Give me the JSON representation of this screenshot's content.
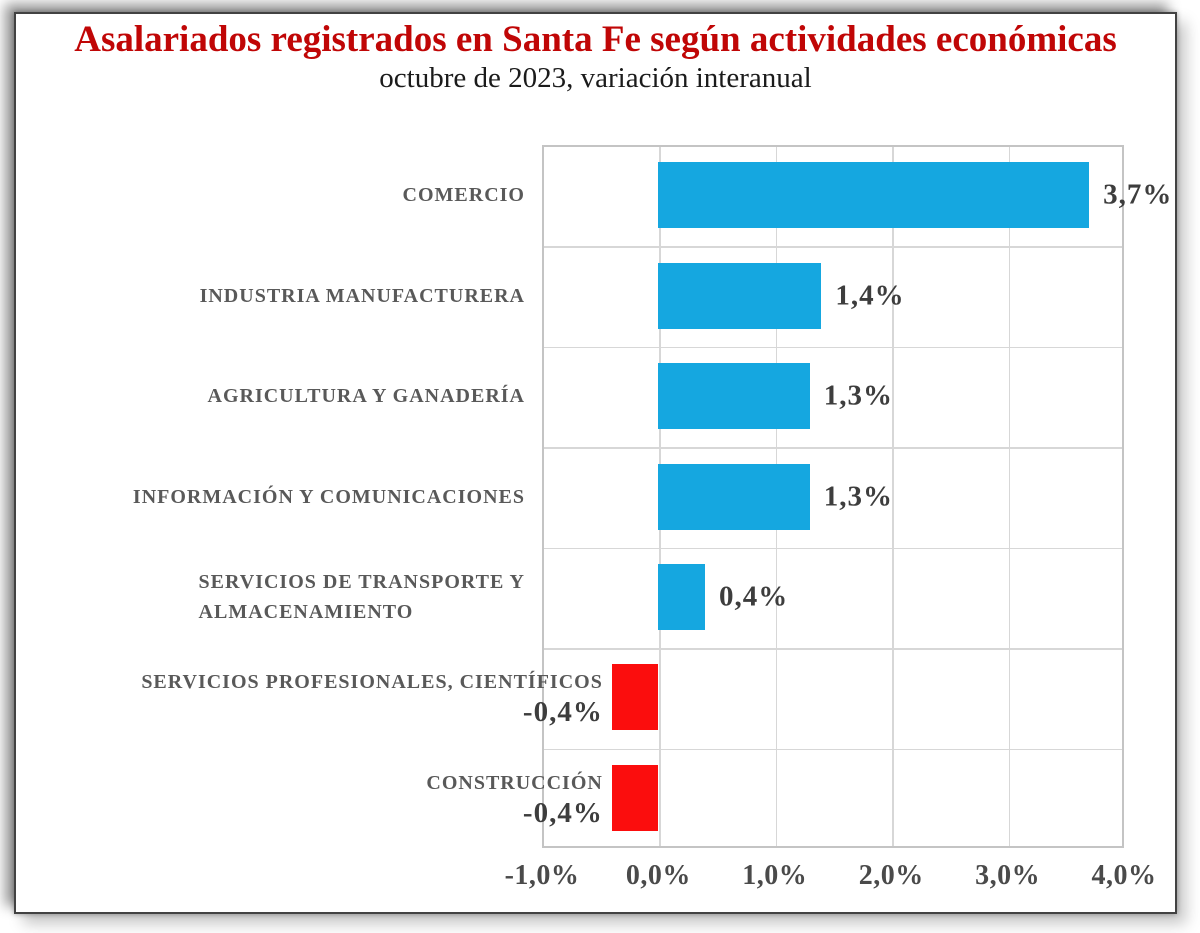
{
  "title": "Asalariados registrados en Santa Fe según actividades económicas",
  "subtitle": "octubre de 2023, variación interanual",
  "colors": {
    "title_red": "#c00606",
    "bar_positive": "#15a7e0",
    "bar_negative": "#fb0d0d",
    "category_label": "#595959",
    "value_label": "#3d3d3d",
    "axis_label": "#4a4a4a",
    "gridline": "#d7d7d7",
    "plot_border": "#c4c4c4"
  },
  "chart_data": {
    "type": "bar",
    "orientation": "horizontal",
    "title": "Asalariados registrados en Santa Fe según actividades económicas",
    "subtitle": "octubre de 2023, variación interanual",
    "xlabel": "",
    "ylabel": "",
    "x_range": [
      -1.0,
      4.0
    ],
    "x_tick_step": 1.0,
    "grid": true,
    "legend": false,
    "categories": [
      "COMERCIO",
      "INDUSTRIA MANUFACTURERA",
      "AGRICULTURA Y GANADERÍA",
      "INFORMACIÓN Y COMUNICACIONES",
      "SERVICIOS DE TRANSPORTE Y ALMACENAMIENTO",
      "SERVICIOS PROFESIONALES, CIENTÍFICOS",
      "CONSTRUCCIÓN"
    ],
    "category_display_lines": [
      [
        "COMERCIO"
      ],
      [
        "INDUSTRIA MANUFACTURERA"
      ],
      [
        "AGRICULTURA Y GANADERÍA"
      ],
      [
        "INFORMACIÓN Y COMUNICACIONES"
      ],
      [
        "SERVICIOS DE TRANSPORTE Y",
        "ALMACENAMIENTO"
      ],
      [
        "SERVICIOS PROFESIONALES, CIENTÍFICOS"
      ],
      [
        "CONSTRUCCIÓN"
      ]
    ],
    "values": [
      3.7,
      1.4,
      1.3,
      1.3,
      0.4,
      -0.4,
      -0.4
    ],
    "value_labels": [
      "3,7%",
      "1,4%",
      "1,3%",
      "1,3%",
      "0,4%",
      "-0,4%",
      "-0,4%"
    ],
    "x_tick_labels": [
      "-1,0%",
      "0,0%",
      "1,0%",
      "2,0%",
      "3,0%",
      "4,0%"
    ]
  }
}
